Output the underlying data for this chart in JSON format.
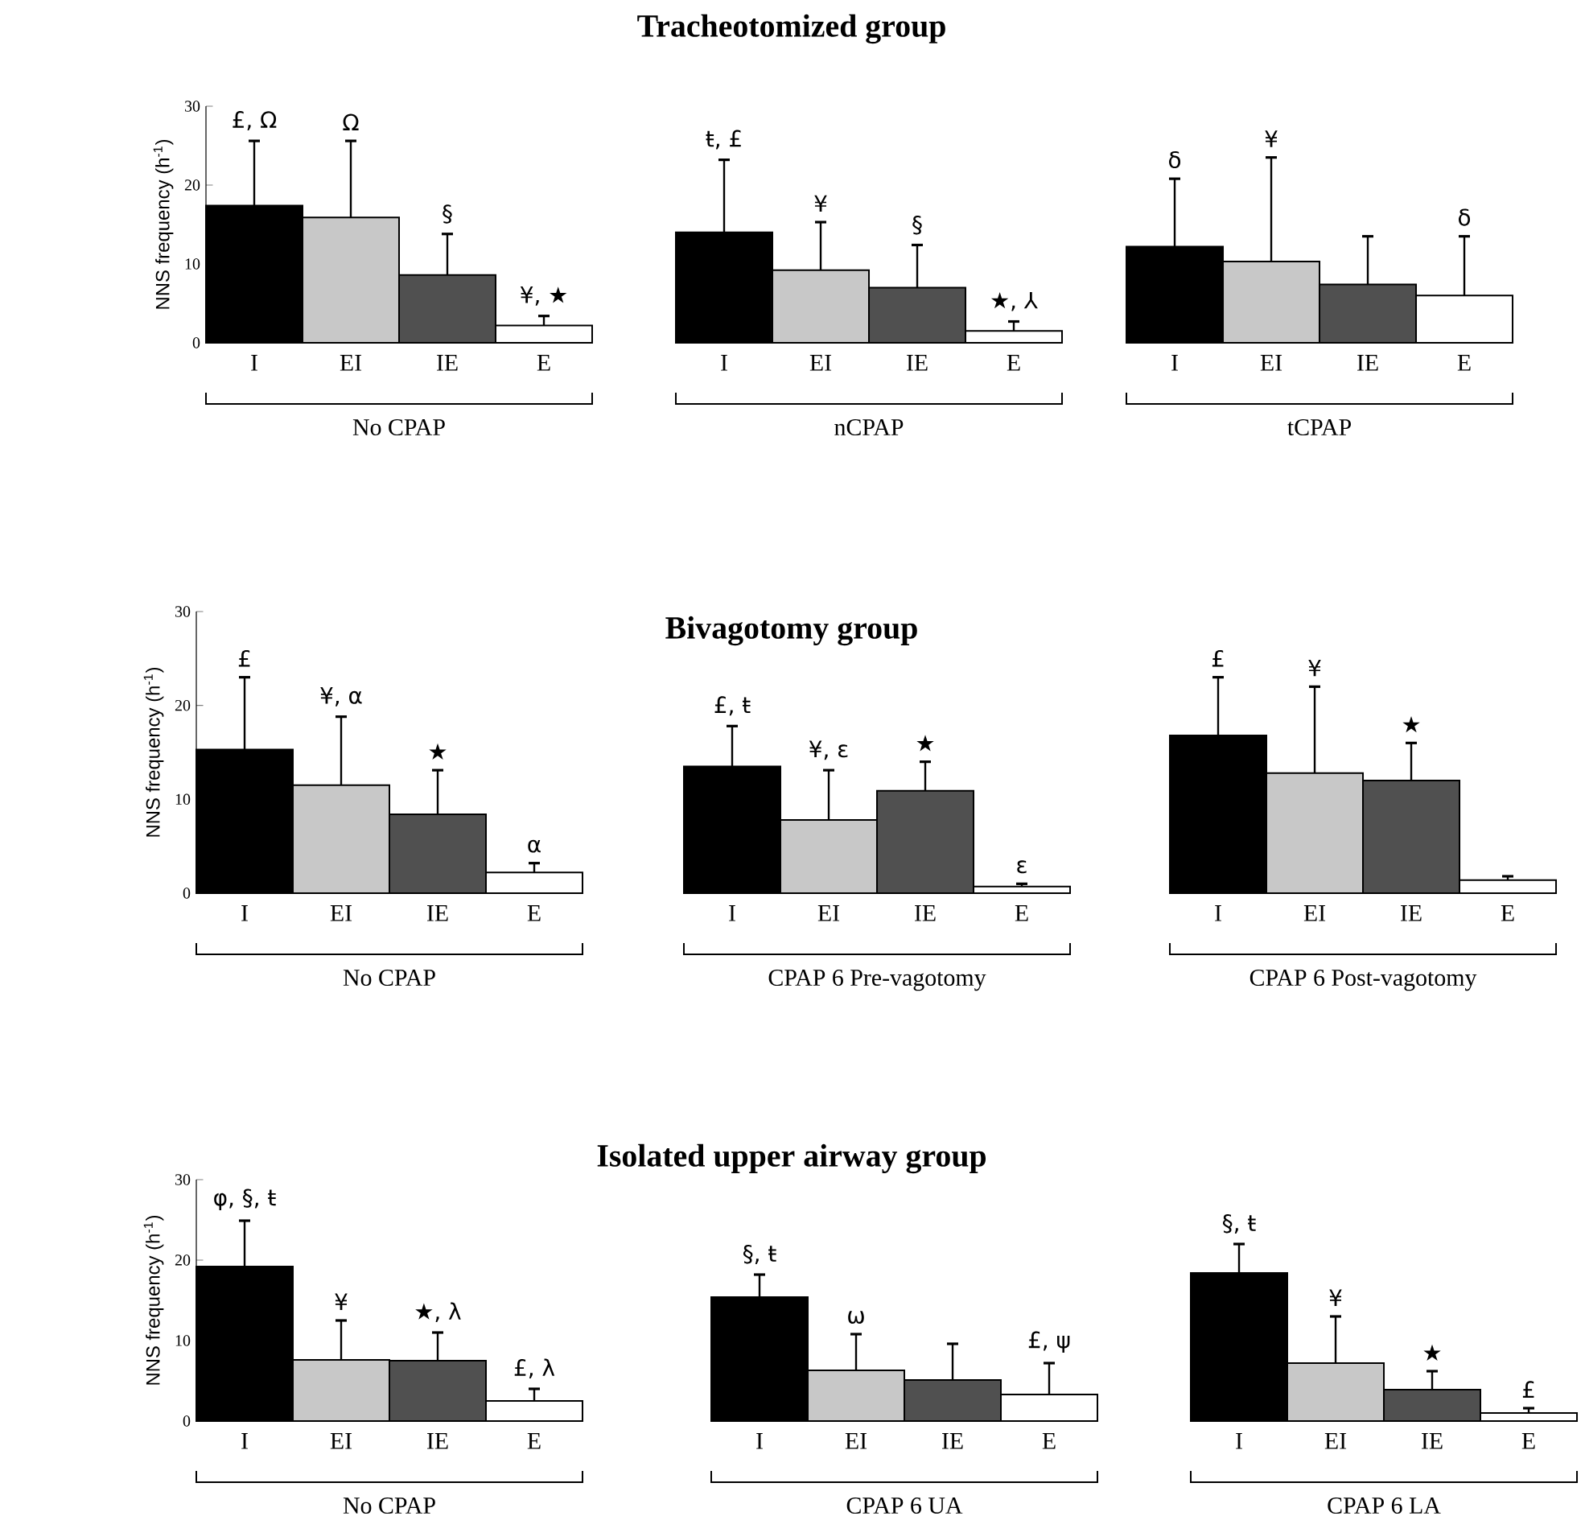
{
  "chart_data": [
    {
      "type": "bar",
      "categories": [
        "I",
        "EI",
        "IE",
        "E"
      ],
      "values": [
        17.4,
        15.9,
        8.6,
        2.2
      ],
      "errors": [
        [
          17.4,
          25.6
        ],
        [
          15.9,
          25.6
        ],
        [
          8.6,
          13.8
        ],
        [
          2.2,
          3.4
        ]
      ],
      "colors": [
        "#000000",
        "#c8c8c8",
        "#505050",
        "#ffffff"
      ],
      "ylim": [
        0,
        30
      ],
      "yticks": [
        0,
        10,
        20,
        30
      ],
      "ylabel": "NNS frequency (h$^{-1}$)",
      "xlabel": "No CPAP",
      "annotations": [
        {
          "text": "£, Ω",
          "x": "I",
          "y": 25.6
        },
        {
          "text": "Ω",
          "x": "EI",
          "y": 25.6
        },
        {
          "text": "§",
          "x": "IE",
          "y": 13.8
        },
        {
          "text": "¥, ★",
          "x": "E",
          "y": 3.4
        }
      ]
    },
    {
      "type": "bar",
      "title": "Tracheotomized group",
      "categories": [
        "I",
        "EI",
        "IE",
        "E"
      ],
      "values": [
        14.0,
        9.2,
        7.0,
        1.5
      ],
      "errors": [
        [
          14.0,
          23.2
        ],
        [
          9.2,
          15.3
        ],
        [
          7.0,
          12.4
        ],
        [
          1.5,
          2.7
        ]
      ],
      "colors": [
        "#000000",
        "#c8c8c8",
        "#505050",
        "#ffffff"
      ],
      "ylim": [
        0,
        30
      ],
      "tick_labels": "x",
      "xlabel": "nCPAP",
      "annotations": [
        {
          "text": "ŧ, £",
          "x": "I",
          "y": 23.2
        },
        {
          "text": "¥",
          "x": "EI",
          "y": 15.3
        },
        {
          "text": "§",
          "x": "IE",
          "y": 12.4
        },
        {
          "text": "★, ⅄",
          "x": "E",
          "y": 2.7
        }
      ]
    },
    {
      "type": "bar",
      "categories": [
        "I",
        "EI",
        "IE",
        "E"
      ],
      "values": [
        12.2,
        10.3,
        7.4,
        6.0
      ],
      "errors": [
        [
          12.2,
          20.8
        ],
        [
          10.3,
          23.5
        ],
        [
          7.4,
          13.5
        ],
        [
          6.0,
          13.5
        ]
      ],
      "colors": [
        "#000000",
        "#c8c8c8",
        "#505050",
        "#ffffff"
      ],
      "ylim": [
        0,
        30
      ],
      "tick_labels": "x",
      "xlabel": "tCPAP",
      "annotations": [
        {
          "text": "δ",
          "x": "I",
          "y": 20.8
        },
        {
          "text": "¥",
          "x": "EI",
          "y": 23.5
        },
        {
          "text": "δ",
          "x": "E",
          "y": 13.5
        }
      ]
    },
    {
      "type": "bar",
      "categories": [
        "I",
        "EI",
        "IE",
        "E"
      ],
      "values": [
        15.3,
        11.5,
        8.4,
        2.2
      ],
      "errors": [
        [
          15.3,
          23.0
        ],
        [
          11.5,
          18.8
        ],
        [
          8.4,
          13.1
        ],
        [
          2.2,
          3.2
        ]
      ],
      "colors": [
        "#000000",
        "#c8c8c8",
        "#505050",
        "#ffffff"
      ],
      "ylim": [
        0,
        30
      ],
      "yticks": [
        0,
        10,
        20,
        30
      ],
      "ylabel": "NNS frequency (h$^{-1}$)",
      "xlabel": "No CPAP",
      "annotations": [
        {
          "text": "£",
          "x": "I",
          "y": 23.0
        },
        {
          "text": "¥, α",
          "x": "EI",
          "y": 18.8
        },
        {
          "text": "★",
          "x": "IE",
          "y": 13.1
        },
        {
          "text": "α",
          "x": "E",
          "y": 3.2
        }
      ]
    },
    {
      "type": "bar",
      "title": "Bivagotomy group",
      "categories": [
        "I",
        "EI",
        "IE",
        "E"
      ],
      "values": [
        13.5,
        7.8,
        10.9,
        0.7
      ],
      "errors": [
        [
          13.5,
          17.8
        ],
        [
          7.8,
          13.1
        ],
        [
          10.9,
          14.0
        ],
        [
          0.7,
          1.0
        ]
      ],
      "colors": [
        "#000000",
        "#c8c8c8",
        "#505050",
        "#ffffff"
      ],
      "ylim": [
        0,
        30
      ],
      "tick_labels": "x",
      "xlabel": "CPAP 6 Pre-vagotomy",
      "annotations": [
        {
          "text": "£, ŧ",
          "x": "I",
          "y": 17.8
        },
        {
          "text": "¥, ε",
          "x": "EI",
          "y": 13.1
        },
        {
          "text": "★",
          "x": "IE",
          "y": 14.0
        },
        {
          "text": "ε",
          "x": "E",
          "y": 1.0
        }
      ]
    },
    {
      "type": "bar",
      "categories": [
        "I",
        "EI",
        "IE",
        "E"
      ],
      "values": [
        16.8,
        12.8,
        12.0,
        1.4
      ],
      "errors": [
        [
          16.8,
          23.0
        ],
        [
          12.8,
          22.0
        ],
        [
          12.0,
          16.0
        ],
        [
          1.4,
          1.8
        ]
      ],
      "colors": [
        "#000000",
        "#c8c8c8",
        "#505050",
        "#ffffff"
      ],
      "ylim": [
        0,
        30
      ],
      "tick_labels": "x",
      "xlabel": "CPAP 6 Post-vagotomy",
      "annotations": [
        {
          "text": "£",
          "x": "I",
          "y": 23.0
        },
        {
          "text": "¥",
          "x": "EI",
          "y": 22.0
        },
        {
          "text": "★",
          "x": "IE",
          "y": 16.0
        }
      ]
    },
    {
      "type": "bar",
      "categories": [
        "I",
        "EI",
        "IE",
        "E"
      ],
      "values": [
        19.2,
        7.6,
        7.5,
        2.5
      ],
      "errors": [
        [
          19.2,
          24.9
        ],
        [
          7.6,
          12.5
        ],
        [
          7.5,
          11.0
        ],
        [
          2.5,
          4.0
        ]
      ],
      "colors": [
        "#000000",
        "#c8c8c8",
        "#505050",
        "#ffffff"
      ],
      "ylim": [
        0,
        30
      ],
      "yticks": [
        0,
        10,
        20,
        30
      ],
      "ylabel": "NNS frequency (h$^{-1}$)",
      "xlabel": "No CPAP",
      "annotations": [
        {
          "text": "φ, §, ŧ",
          "x": "I",
          "y": 24.9
        },
        {
          "text": "¥",
          "x": "EI",
          "y": 12.5
        },
        {
          "text": "★, λ",
          "x": "IE",
          "y": 11.0
        },
        {
          "text": "£, λ",
          "x": "E",
          "y": 4.0
        }
      ]
    },
    {
      "type": "bar",
      "title": "Isolated upper airway group",
      "categories": [
        "I",
        "EI",
        "IE",
        "E"
      ],
      "values": [
        15.4,
        6.3,
        5.1,
        3.3
      ],
      "errors": [
        [
          15.4,
          18.2
        ],
        [
          6.3,
          10.8
        ],
        [
          5.1,
          9.6
        ],
        [
          3.3,
          7.2
        ]
      ],
      "colors": [
        "#000000",
        "#c8c8c8",
        "#505050",
        "#ffffff"
      ],
      "ylim": [
        0,
        30
      ],
      "tick_labels": "x",
      "xlabel": "CPAP 6 UA",
      "annotations": [
        {
          "text": "§, ŧ",
          "x": "I",
          "y": 18.2
        },
        {
          "text": "ω",
          "x": "EI",
          "y": 10.8
        },
        {
          "text": "£, ψ",
          "x": "E",
          "y": 7.2
        }
      ]
    },
    {
      "type": "bar",
      "categories": [
        "I",
        "EI",
        "IE",
        "E"
      ],
      "values": [
        18.4,
        7.2,
        3.9,
        1.0
      ],
      "errors": [
        [
          18.4,
          22.0
        ],
        [
          7.2,
          13.0
        ],
        [
          3.9,
          6.2
        ],
        [
          1.0,
          1.6
        ]
      ],
      "colors": [
        "#000000",
        "#c8c8c8",
        "#505050",
        "#ffffff"
      ],
      "ylim": [
        0,
        30
      ],
      "tick_labels": "x",
      "xlabel": "CPAP 6 LA",
      "annotations": [
        {
          "text": "§, ŧ",
          "x": "I",
          "y": 22.0
        },
        {
          "text": "¥",
          "x": "EI",
          "y": 13.0
        },
        {
          "text": "★",
          "x": "IE",
          "y": 6.2
        },
        {
          "text": "£",
          "x": "E",
          "y": 1.6
        }
      ]
    }
  ]
}
